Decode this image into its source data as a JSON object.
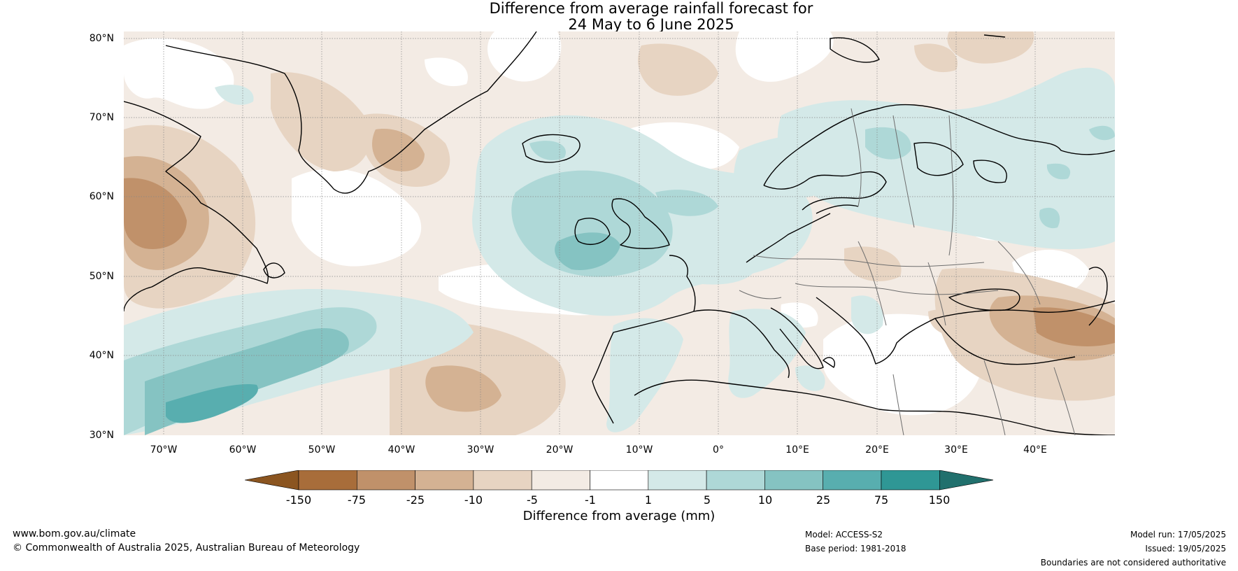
{
  "title_line1": "Difference from average rainfall forecast for",
  "title_line2": "24 May to 6 June 2025",
  "map": {
    "projection": "plate carree",
    "lon_range": [
      -75,
      50
    ],
    "lat_range": [
      30,
      81
    ],
    "lat_labels": [
      "80°N",
      "70°N",
      "60°N",
      "50°N",
      "40°N",
      "30°N"
    ],
    "lon_labels": [
      "70°W",
      "60°W",
      "50°W",
      "40°W",
      "30°W",
      "20°W",
      "10°W",
      "0°",
      "10°E",
      "20°E",
      "30°E",
      "40°E"
    ],
    "gridlines": true,
    "coastline_color": "#000000",
    "border_color": "#6e6e6e"
  },
  "colorbar": {
    "label": "Difference from average (mm)",
    "ticks": [
      "-150",
      "-75",
      "-25",
      "-10",
      "-5",
      "-1",
      "1",
      "5",
      "10",
      "25",
      "75",
      "150"
    ],
    "colors": [
      "#8b5520",
      "#a86d3a",
      "#c0916a",
      "#d4b293",
      "#e7d4c2",
      "#f3ebe4",
      "#ffffff",
      "#d4e9e8",
      "#aed8d7",
      "#85c3c2",
      "#58aeaf",
      "#2f9795",
      "#21706d"
    ],
    "extend": "both"
  },
  "footer": {
    "url": "www.bom.gov.au/climate",
    "copyright": "© Commonwealth of Australia 2025, Australian Bureau of Meteorology",
    "model": "Model: ACCESS-S2",
    "base_period": "Base period: 1981-2018",
    "model_run": "Model run: 17/05/2025",
    "issued": "Issued: 19/05/2025",
    "disclaimer": "Boundaries are not considered authoritative"
  }
}
